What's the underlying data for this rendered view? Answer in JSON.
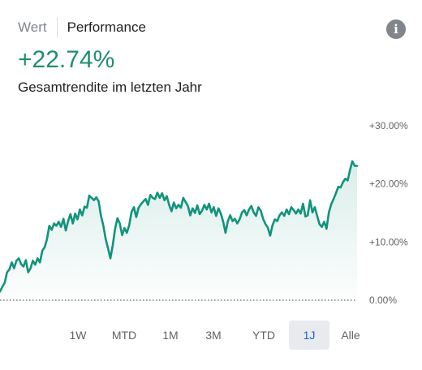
{
  "tabs": {
    "inactive_label": "Wert",
    "active_label": "Performance"
  },
  "info_icon": "info-icon",
  "summary": {
    "value": "+22.74%",
    "subtitle": "Gesamtrendite im letzten Jahr"
  },
  "chart_data": {
    "type": "area",
    "title": "",
    "xlabel": "",
    "ylabel": "",
    "y_unit": "%",
    "ylim": [
      -2,
      33
    ],
    "y_ticks": [
      {
        "value": 30,
        "label": "+30.00%"
      },
      {
        "value": 20,
        "label": "+20.00%"
      },
      {
        "value": 10,
        "label": "+10.00%"
      },
      {
        "value": 0,
        "label": "0.00%"
      }
    ],
    "baseline_dotted": true,
    "grid": false,
    "line_color": "#12937b",
    "fill_color": "#12937b",
    "series": [
      {
        "values": [
          1.5,
          2.3,
          3.0,
          4.8,
          5.3,
          6.5,
          5.5,
          6.8,
          7.2,
          6.2,
          5.8,
          6.9,
          4.8,
          5.5,
          6.8,
          6.1,
          7.2,
          6.5,
          8.5,
          9.1,
          10.5,
          12.8,
          12.1,
          13.2,
          12.8,
          13.5,
          12.6,
          14.0,
          12.0,
          13.6,
          14.8,
          13.2,
          14.9,
          13.9,
          15.6,
          14.6,
          16.1,
          15.9,
          18.0,
          17.6,
          17.2,
          17.7,
          17.0,
          14.5,
          12.8,
          10.5,
          8.9,
          7.2,
          9.5,
          12.3,
          14.1,
          13.2,
          11.2,
          12.4,
          11.6,
          12.9,
          15.2,
          16.0,
          14.3,
          15.9,
          16.5,
          17.0,
          17.4,
          16.4,
          18.1,
          17.6,
          17.4,
          18.5,
          17.6,
          18.4,
          17.2,
          17.9,
          16.4,
          15.3,
          16.8,
          15.8,
          16.4,
          15.9,
          17.6,
          16.9,
          16.2,
          14.6,
          15.8,
          15.0,
          16.3,
          14.8,
          15.4,
          16.4,
          15.6,
          16.6,
          15.1,
          16.0,
          14.5,
          15.8,
          14.9,
          13.5,
          11.6,
          13.6,
          14.6,
          13.6,
          14.0,
          13.2,
          13.9,
          15.1,
          15.5,
          14.6,
          15.6,
          16.2,
          15.1,
          14.5,
          16.0,
          15.4,
          14.0,
          13.1,
          12.5,
          11.1,
          12.9,
          13.9,
          13.6,
          14.6,
          15.1,
          14.5,
          15.6,
          14.8,
          16.0,
          15.5,
          14.9,
          15.6,
          14.9,
          16.6,
          14.4,
          14.6,
          17.2,
          15.1,
          16.0,
          14.5,
          13.1,
          12.6,
          13.5,
          12.3,
          15.1,
          16.5,
          17.4,
          18.4,
          19.5,
          19.4,
          20.3,
          20.9,
          20.6,
          22.4,
          23.9,
          23.1,
          23.1
        ]
      }
    ]
  },
  "ranges": {
    "active_index": 5,
    "items": [
      "1W",
      "MTD",
      "1M",
      "3M",
      "YTD",
      "1J",
      "Alle"
    ]
  }
}
